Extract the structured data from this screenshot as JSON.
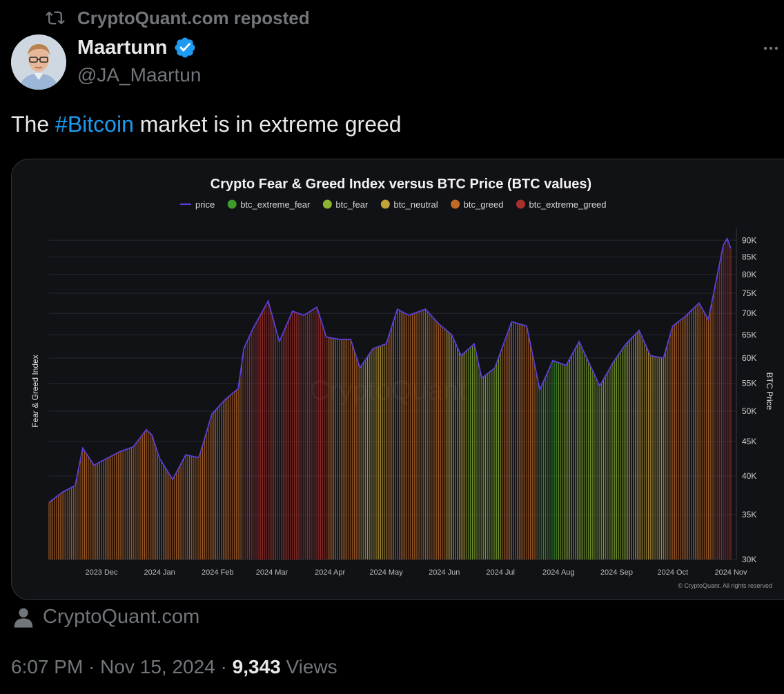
{
  "repost": {
    "label": "CryptoQuant.com reposted",
    "icon": "repost-icon"
  },
  "author": {
    "name": "Maartunn",
    "handle": "@JA_Maartun",
    "verified_icon": "verified-badge-icon"
  },
  "tweet": {
    "text_before": "The ",
    "hashtag": "#Bitcoin",
    "text_after": " market is in extreme greed"
  },
  "source_link": {
    "label": "CryptoQuant.com",
    "icon": "user-icon"
  },
  "meta": {
    "time": "6:07 PM",
    "separator": "·",
    "date": "Nov 15, 2024",
    "views_count": "9,343",
    "views_label": "Views"
  },
  "colors": {
    "hashtag": "#1d9bf0",
    "muted": "#71767b",
    "verified": "#1d9bf0"
  },
  "chart_data": {
    "type": "bar",
    "title": "Crypto Fear & Greed Index versus BTC Price (BTC values)",
    "ylabel_left": "Fear & Greed Index",
    "ylabel_right": "BTC Price",
    "watermark": "CryptoQuant",
    "copyright": "© CryptoQuant. All rights reserved",
    "legend_position": "top-center",
    "legend": [
      {
        "name": "price",
        "color": "#5b3fd6",
        "marker": "line"
      },
      {
        "name": "btc_extreme_fear",
        "color": "#3f9a2e",
        "marker": "dot"
      },
      {
        "name": "btc_fear",
        "color": "#8db42f",
        "marker": "dot"
      },
      {
        "name": "btc_neutral",
        "color": "#c2a138",
        "marker": "dot"
      },
      {
        "name": "btc_greed",
        "color": "#c06a26",
        "marker": "dot"
      },
      {
        "name": "btc_extreme_greed",
        "color": "#a8322b",
        "marker": "dot"
      }
    ],
    "x_ticks": [
      "2023 Dec",
      "2024 Jan",
      "2024 Feb",
      "2024 Mar",
      "2024 Apr",
      "2024 May",
      "2024 Jun",
      "2024 Jul",
      "2024 Aug",
      "2024 Sep",
      "2024 Oct",
      "2024 Nov"
    ],
    "y_ticks": [
      "90K",
      "85K",
      "80K",
      "75K",
      "70K",
      "65K",
      "60K",
      "55K",
      "50K",
      "45K",
      "40K",
      "35K",
      "30K"
    ],
    "y_tick_values": [
      90000,
      85000,
      80000,
      75000,
      70000,
      65000,
      60000,
      55000,
      50000,
      45000,
      40000,
      35000,
      30000
    ],
    "y_scale": "log",
    "ylim": [
      30000,
      92000
    ],
    "x_range": [
      "2023-11-17",
      "2024-11-15"
    ],
    "grid": true,
    "price_series": {
      "name": "price",
      "points": [
        [
          "2023-11-17",
          36500
        ],
        [
          "2023-11-24",
          37800
        ],
        [
          "2023-12-01",
          38700
        ],
        [
          "2023-12-05",
          44000
        ],
        [
          "2023-12-11",
          41500
        ],
        [
          "2023-12-18",
          42500
        ],
        [
          "2023-12-25",
          43500
        ],
        [
          "2024-01-01",
          44200
        ],
        [
          "2024-01-08",
          46900
        ],
        [
          "2024-01-11",
          46000
        ],
        [
          "2024-01-15",
          42500
        ],
        [
          "2024-01-22",
          39500
        ],
        [
          "2024-01-29",
          43000
        ],
        [
          "2024-02-05",
          42600
        ],
        [
          "2024-02-12",
          49500
        ],
        [
          "2024-02-19",
          52000
        ],
        [
          "2024-02-26",
          54000
        ],
        [
          "2024-02-29",
          62000
        ],
        [
          "2024-03-05",
          66500
        ],
        [
          "2024-03-13",
          73000
        ],
        [
          "2024-03-19",
          63500
        ],
        [
          "2024-03-26",
          70500
        ],
        [
          "2024-04-01",
          69500
        ],
        [
          "2024-04-08",
          71500
        ],
        [
          "2024-04-13",
          64500
        ],
        [
          "2024-04-20",
          64000
        ],
        [
          "2024-04-26",
          64000
        ],
        [
          "2024-05-01",
          58000
        ],
        [
          "2024-05-08",
          62000
        ],
        [
          "2024-05-15",
          63000
        ],
        [
          "2024-05-21",
          71000
        ],
        [
          "2024-05-27",
          69500
        ],
        [
          "2024-06-05",
          71000
        ],
        [
          "2024-06-12",
          67500
        ],
        [
          "2024-06-19",
          65000
        ],
        [
          "2024-06-24",
          60500
        ],
        [
          "2024-07-01",
          63000
        ],
        [
          "2024-07-05",
          56000
        ],
        [
          "2024-07-12",
          58000
        ],
        [
          "2024-07-21",
          68000
        ],
        [
          "2024-07-29",
          67000
        ],
        [
          "2024-08-05",
          53800
        ],
        [
          "2024-08-12",
          59500
        ],
        [
          "2024-08-19",
          58500
        ],
        [
          "2024-08-26",
          63500
        ],
        [
          "2024-09-06",
          54500
        ],
        [
          "2024-09-13",
          59000
        ],
        [
          "2024-09-20",
          63000
        ],
        [
          "2024-09-27",
          66000
        ],
        [
          "2024-10-03",
          60500
        ],
        [
          "2024-10-10",
          60000
        ],
        [
          "2024-10-15",
          67000
        ],
        [
          "2024-10-21",
          69000
        ],
        [
          "2024-10-29",
          72500
        ],
        [
          "2024-11-03",
          68500
        ],
        [
          "2024-11-06",
          75500
        ],
        [
          "2024-11-11",
          88500
        ],
        [
          "2024-11-13",
          90500
        ],
        [
          "2024-11-15",
          87500
        ]
      ]
    },
    "sentiment_periods": [
      {
        "from": "2023-11-17",
        "to": "2024-02-28",
        "class": "btc_greed"
      },
      {
        "from": "2024-02-28",
        "to": "2024-04-13",
        "class": "btc_extreme_greed"
      },
      {
        "from": "2024-04-13",
        "to": "2024-04-30",
        "class": "btc_greed"
      },
      {
        "from": "2024-04-30",
        "to": "2024-05-15",
        "class": "btc_neutral"
      },
      {
        "from": "2024-05-15",
        "to": "2024-06-15",
        "class": "btc_greed"
      },
      {
        "from": "2024-06-15",
        "to": "2024-06-26",
        "class": "btc_neutral"
      },
      {
        "from": "2024-06-26",
        "to": "2024-07-15",
        "class": "btc_fear"
      },
      {
        "from": "2024-07-15",
        "to": "2024-08-03",
        "class": "btc_greed"
      },
      {
        "from": "2024-08-03",
        "to": "2024-08-14",
        "class": "btc_extreme_fear"
      },
      {
        "from": "2024-08-14",
        "to": "2024-09-20",
        "class": "btc_fear"
      },
      {
        "from": "2024-09-20",
        "to": "2024-10-12",
        "class": "btc_neutral"
      },
      {
        "from": "2024-10-12",
        "to": "2024-11-06",
        "class": "btc_greed"
      },
      {
        "from": "2024-11-06",
        "to": "2024-11-15",
        "class": "btc_extreme_greed"
      }
    ]
  }
}
